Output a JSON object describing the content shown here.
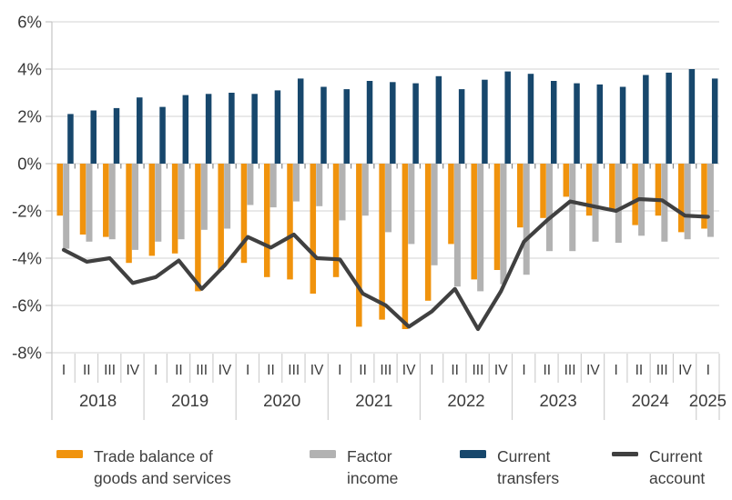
{
  "chart_data": {
    "type": "bar-line-combo",
    "unit": "%",
    "quarter_labels": [
      "I",
      "II",
      "III",
      "IV",
      "I",
      "II",
      "III",
      "IV",
      "I",
      "II",
      "III",
      "IV",
      "I",
      "II",
      "III",
      "IV",
      "I",
      "II",
      "III",
      "IV",
      "I",
      "II",
      "III",
      "IV",
      "I",
      "II",
      "III",
      "IV",
      "I"
    ],
    "years": [
      {
        "label": "2018",
        "span": 4
      },
      {
        "label": "2019",
        "span": 4
      },
      {
        "label": "2020",
        "span": 4
      },
      {
        "label": "2021",
        "span": 4
      },
      {
        "label": "2022",
        "span": 4
      },
      {
        "label": "2023",
        "span": 4
      },
      {
        "label": "2024",
        "span": 4
      },
      {
        "label": "2025",
        "span": 1
      }
    ],
    "series": [
      {
        "name": "Trade balance of goods and services",
        "type": "bar",
        "color": "#F0930D",
        "values": [
          -2.2,
          -3.0,
          -3.1,
          -4.2,
          -3.9,
          -3.8,
          -5.4,
          -4.5,
          -4.2,
          -4.8,
          -4.9,
          -5.5,
          -4.8,
          -6.9,
          -6.6,
          -7.0,
          -5.8,
          -3.4,
          -4.9,
          -4.5,
          -2.7,
          -2.3,
          -1.4,
          -2.2,
          -2.0,
          -2.6,
          -2.2,
          -2.9,
          -2.75
        ]
      },
      {
        "name": "Factor income",
        "type": "bar",
        "color": "#B2B2B2",
        "values": [
          -3.6,
          -3.3,
          -3.2,
          -3.65,
          -3.3,
          -3.2,
          -2.8,
          -2.75,
          -1.75,
          -1.85,
          -1.6,
          -1.8,
          -2.4,
          -2.2,
          -2.9,
          -3.4,
          -4.3,
          -5.2,
          -5.4,
          -5.1,
          -4.7,
          -3.7,
          -3.7,
          -3.3,
          -3.35,
          -3.05,
          -3.3,
          -3.2,
          -3.1
        ]
      },
      {
        "name": "Current transfers",
        "type": "bar",
        "color": "#17476C",
        "values": [
          2.1,
          2.25,
          2.35,
          2.8,
          2.4,
          2.9,
          2.95,
          3.0,
          2.95,
          3.1,
          3.6,
          3.25,
          3.15,
          3.5,
          3.45,
          3.4,
          3.7,
          3.15,
          3.55,
          3.9,
          3.8,
          3.5,
          3.4,
          3.35,
          3.25,
          3.75,
          3.85,
          4.0,
          3.6
        ]
      },
      {
        "name": "Current account",
        "type": "line",
        "color": "#404040",
        "values": [
          -3.65,
          -4.15,
          -4.0,
          -5.05,
          -4.8,
          -4.1,
          -5.3,
          -4.3,
          -3.1,
          -3.55,
          -3.0,
          -4.0,
          -4.05,
          -5.5,
          -6.0,
          -6.9,
          -6.25,
          -5.3,
          -7.0,
          -5.4,
          -3.3,
          -2.4,
          -1.6,
          -1.8,
          -2.0,
          -1.5,
          -1.55,
          -2.2,
          -2.25
        ]
      }
    ],
    "y_axis": {
      "min": -8,
      "max": 6,
      "tick_values": [
        6,
        4,
        2,
        0,
        -2,
        -4,
        -6,
        -8
      ],
      "tick_labels": [
        "6%",
        "4%",
        "2%",
        "0%",
        "-2%",
        "-4%",
        "-6%",
        "-8%"
      ]
    },
    "legend": [
      {
        "swatch": "bar",
        "color": "#F0930D",
        "lines": [
          "Trade balance of",
          "goods and services"
        ]
      },
      {
        "swatch": "bar",
        "color": "#B2B2B2",
        "lines": [
          "Factor",
          "income"
        ]
      },
      {
        "swatch": "bar",
        "color": "#17476C",
        "lines": [
          "Current",
          "transfers"
        ]
      },
      {
        "swatch": "line",
        "color": "#404040",
        "lines": [
          "Current",
          "account"
        ]
      }
    ],
    "legend_position": "bottom",
    "grid": true,
    "colors": {
      "grid": "#DCDCDC",
      "axis": "#C8C8C8",
      "separator": "#CFCFCF",
      "zero_tick": "#8A8A8A",
      "text": "#3A3A3A",
      "background": "#FFFFFF"
    }
  }
}
